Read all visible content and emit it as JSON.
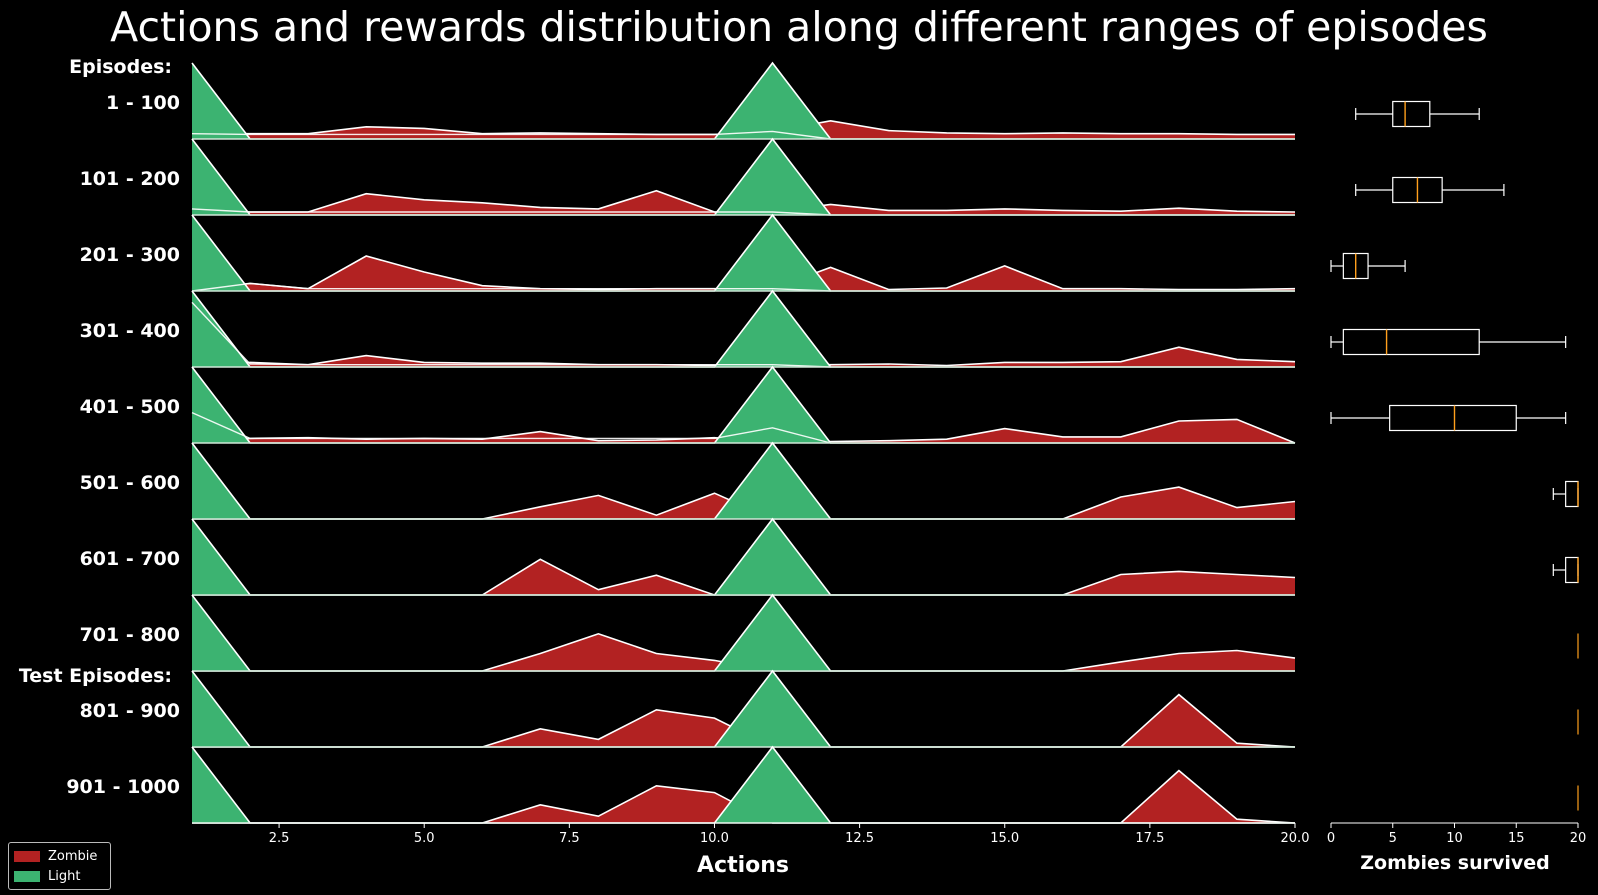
{
  "colors": {
    "background": "#000000",
    "zombie": "#b22222",
    "light": "#3cb371",
    "outline": "#ffffff",
    "median": "#ff9f1c"
  },
  "chart_data": {
    "type": "area",
    "title": "Actions and rewards distribution along different ranges of episodes",
    "xlabel": "Actions",
    "xlim": [
      1,
      20
    ],
    "xticks": [
      "2.5",
      "5.0",
      "7.5",
      "10.0",
      "12.5",
      "15.0",
      "17.5",
      "20.0"
    ],
    "group_header": "Episodes:",
    "test_header": "Test Episodes:",
    "legend": {
      "placement": "lower-left",
      "entries": [
        "Zombie",
        "Light"
      ]
    },
    "x": [
      1,
      2,
      3,
      4,
      5,
      6,
      7,
      8,
      9,
      10,
      11,
      12,
      13,
      14,
      15,
      16,
      17,
      18,
      19,
      20
    ],
    "light_profile": [
      1.0,
      0,
      0,
      0,
      0,
      0,
      0,
      0,
      0,
      0,
      1.0,
      0,
      0,
      0,
      0,
      0,
      0,
      0,
      0,
      0
    ],
    "ridges": [
      {
        "label": "1 - 100",
        "zombie": [
          0.07,
          0.07,
          0.07,
          0.16,
          0.14,
          0.07,
          0.08,
          0.07,
          0.06,
          0.06,
          0.1,
          0.24,
          0.11,
          0.08,
          0.07,
          0.08,
          0.07,
          0.07,
          0.06,
          0.06
        ]
      },
      {
        "label": "101 - 200",
        "zombie": [
          0.08,
          0.04,
          0.04,
          0.28,
          0.2,
          0.16,
          0.1,
          0.08,
          0.32,
          0.04,
          0.04,
          0.14,
          0.06,
          0.06,
          0.08,
          0.06,
          0.05,
          0.09,
          0.05,
          0.04
        ]
      },
      {
        "label": "201 - 300",
        "zombie": [
          0.02,
          0.1,
          0.03,
          0.46,
          0.25,
          0.07,
          0.03,
          0.02,
          0.03,
          0.03,
          0.03,
          0.31,
          0.02,
          0.04,
          0.33,
          0.03,
          0.03,
          0.02,
          0.02,
          0.03
        ]
      },
      {
        "label": "301 - 400",
        "zombie": [
          0.0,
          0.06,
          0.03,
          0.15,
          0.06,
          0.05,
          0.05,
          0.03,
          0.03,
          0.02,
          0.04,
          0.03,
          0.04,
          0.02,
          0.06,
          0.06,
          0.07,
          0.26,
          0.1,
          0.07
        ]
      },
      {
        "label": "401 - 500",
        "zombie": [
          0.0,
          0.06,
          0.07,
          0.05,
          0.06,
          0.05,
          0.15,
          0.03,
          0.04,
          0.07,
          0.0,
          0.02,
          0.03,
          0.05,
          0.19,
          0.08,
          0.08,
          0.29,
          0.31,
          0.0
        ]
      },
      {
        "label": "501 - 600",
        "zombie": [
          0.0,
          0.0,
          0.0,
          0.0,
          0.0,
          0.0,
          0.16,
          0.31,
          0.05,
          0.34,
          0.0,
          0.0,
          0.0,
          0.0,
          0.0,
          0.0,
          0.29,
          0.42,
          0.15,
          0.23
        ]
      },
      {
        "label": "601 - 700",
        "zombie": [
          0.0,
          0.0,
          0.0,
          0.0,
          0.0,
          0.0,
          0.47,
          0.07,
          0.26,
          0.0,
          0.0,
          0.0,
          0.0,
          0.0,
          0.0,
          0.0,
          0.27,
          0.31,
          0.27,
          0.23
        ]
      },
      {
        "label": "701 - 800",
        "zombie": [
          0.0,
          0.0,
          0.0,
          0.0,
          0.0,
          0.0,
          0.23,
          0.49,
          0.23,
          0.14,
          0.0,
          0.0,
          0.0,
          0.0,
          0.0,
          0.0,
          0.12,
          0.23,
          0.27,
          0.17
        ]
      },
      {
        "label": "801 - 900",
        "zombie": [
          0.0,
          0.0,
          0.0,
          0.0,
          0.0,
          0.0,
          0.24,
          0.1,
          0.49,
          0.38,
          0.0,
          0.0,
          0.0,
          0.0,
          0.0,
          0.0,
          0.0,
          0.69,
          0.05,
          0.0
        ]
      },
      {
        "label": "901 - 1000",
        "zombie": [
          0.0,
          0.0,
          0.0,
          0.0,
          0.0,
          0.0,
          0.24,
          0.09,
          0.49,
          0.4,
          0.0,
          0.0,
          0.0,
          0.0,
          0.0,
          0.0,
          0.0,
          0.69,
          0.05,
          0.0
        ]
      }
    ],
    "light_extra": [
      [
        0.07,
        0.06,
        0.06,
        0.06,
        0.06,
        0.06,
        0.06,
        0.06,
        0.06,
        0.06,
        0.1,
        0.0,
        0.0,
        0.0,
        0.0,
        0.0,
        0.0,
        0.0,
        0.0,
        0.0
      ],
      [
        0.08,
        0.04,
        0.04,
        0.04,
        0.04,
        0.04,
        0.04,
        0.04,
        0.04,
        0.04,
        0.04,
        0.0,
        0.0,
        0.0,
        0.0,
        0.0,
        0.0,
        0.0,
        0.0,
        0.0
      ],
      [
        0.0,
        0.1,
        0.03,
        0.03,
        0.03,
        0.03,
        0.03,
        0.03,
        0.03,
        0.03,
        0.03,
        0.0,
        0.0,
        0.0,
        0.0,
        0.0,
        0.0,
        0.0,
        0.0,
        0.0
      ],
      [
        0.85,
        0.04,
        0.03,
        0.03,
        0.03,
        0.03,
        0.03,
        0.03,
        0.03,
        0.03,
        0.03,
        0.0,
        0.0,
        0.0,
        0.0,
        0.0,
        0.0,
        0.0,
        0.0,
        0.0
      ],
      [
        0.4,
        0.06,
        0.06,
        0.06,
        0.06,
        0.06,
        0.06,
        0.06,
        0.06,
        0.06,
        0.2,
        0.0,
        0.0,
        0.0,
        0.0,
        0.0,
        0.0,
        0.0,
        0.0,
        0.0
      ],
      [
        0,
        0,
        0,
        0,
        0,
        0,
        0,
        0,
        0,
        0,
        0,
        0,
        0,
        0,
        0,
        0,
        0,
        0,
        0,
        0
      ],
      [
        0,
        0,
        0,
        0,
        0,
        0,
        0,
        0,
        0,
        0,
        0,
        0,
        0,
        0,
        0,
        0,
        0,
        0,
        0,
        0
      ],
      [
        0,
        0,
        0,
        0,
        0,
        0,
        0,
        0,
        0,
        0,
        0,
        0,
        0,
        0,
        0,
        0,
        0,
        0,
        0,
        0
      ],
      [
        0,
        0,
        0,
        0,
        0,
        0,
        0,
        0,
        0,
        0,
        0,
        0,
        0,
        0,
        0,
        0,
        0,
        0,
        0,
        0
      ],
      [
        0,
        0,
        0,
        0,
        0,
        0,
        0,
        0,
        0,
        0,
        0,
        0,
        0,
        0,
        0,
        0,
        0,
        0,
        0,
        0
      ]
    ],
    "box_panel": {
      "xlabel": "Zombies survived",
      "xlim": [
        0,
        20
      ],
      "xticks": [
        "0",
        "5",
        "10",
        "15",
        "20"
      ],
      "boxes": [
        {
          "label": "1 - 100",
          "whisker_low": 2,
          "q1": 5,
          "median": 6,
          "q3": 8,
          "whisker_high": 12
        },
        {
          "label": "101 - 200",
          "whisker_low": 2,
          "q1": 5,
          "median": 7,
          "q3": 9,
          "whisker_high": 14
        },
        {
          "label": "201 - 300",
          "whisker_low": 0,
          "q1": 1,
          "median": 2,
          "q3": 3,
          "whisker_high": 6
        },
        {
          "label": "301 - 400",
          "whisker_low": 0,
          "q1": 1,
          "median": 4.5,
          "q3": 12,
          "whisker_high": 19
        },
        {
          "label": "401 - 500",
          "whisker_low": 0,
          "q1": 4.75,
          "median": 10,
          "q3": 15,
          "whisker_high": 19
        },
        {
          "label": "501 - 600",
          "whisker_low": 18,
          "q1": 19,
          "median": 20,
          "q3": 20,
          "whisker_high": 20
        },
        {
          "label": "601 - 700",
          "whisker_low": 18,
          "q1": 19,
          "median": 20,
          "q3": 20,
          "whisker_high": 20
        },
        {
          "label": "701 - 800",
          "whisker_low": 20,
          "q1": 20,
          "median": 20,
          "q3": 20,
          "whisker_high": 20
        },
        {
          "label": "801 - 900",
          "whisker_low": 20,
          "q1": 20,
          "median": 20,
          "q3": 20,
          "whisker_high": 20
        },
        {
          "label": "901 - 1000",
          "whisker_low": 20,
          "q1": 20,
          "median": 20,
          "q3": 20,
          "whisker_high": 20
        }
      ]
    }
  }
}
